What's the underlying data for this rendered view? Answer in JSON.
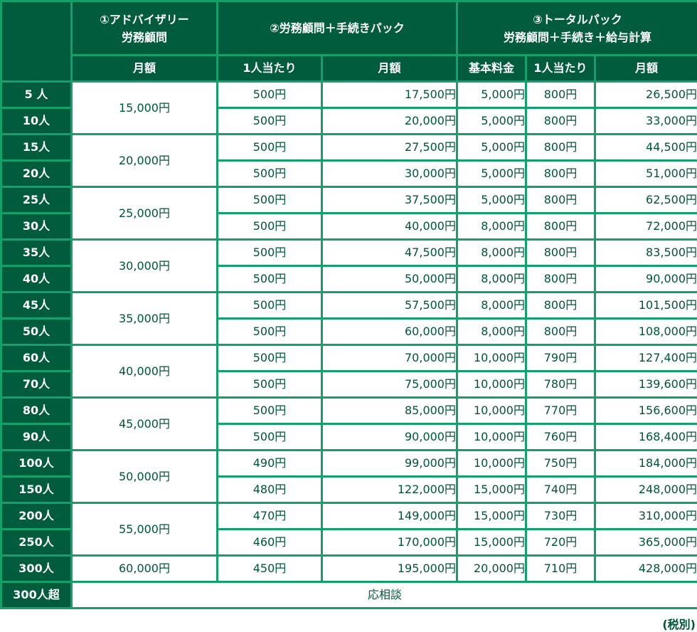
{
  "table": {
    "headers": {
      "plan1_title_line1": "①アドバイザリー",
      "plan1_title_line2": "労務顧問",
      "plan2_title": "②労務顧問＋手続きパック",
      "plan3_title_line1": "③トータルパック",
      "plan3_title_line2": "労務顧問＋手続き＋給与計算",
      "plan1_monthly": "月額",
      "plan2_per_person": "1人当たり",
      "plan2_monthly": "月額",
      "plan3_base_fee": "基本料金",
      "plan3_per_person": "1人当たり",
      "plan3_monthly": "月額"
    },
    "plan1_groups": [
      "15,000円",
      "20,000円",
      "25,000円",
      "30,000円",
      "35,000円",
      "40,000円",
      "45,000円",
      "50,000円",
      "55,000円",
      "60,000円"
    ],
    "rows": [
      {
        "employees": "5 人",
        "p2_per": "500円",
        "p2_month": "17,500円",
        "p3_base": "5,000円",
        "p3_per": "800円",
        "p3_month": "26,500円"
      },
      {
        "employees": "10人",
        "p2_per": "500円",
        "p2_month": "20,000円",
        "p3_base": "5,000円",
        "p3_per": "800円",
        "p3_month": "33,000円"
      },
      {
        "employees": "15人",
        "p2_per": "500円",
        "p2_month": "27,500円",
        "p3_base": "5,000円",
        "p3_per": "800円",
        "p3_month": "44,500円"
      },
      {
        "employees": "20人",
        "p2_per": "500円",
        "p2_month": "30,000円",
        "p3_base": "5,000円",
        "p3_per": "800円",
        "p3_month": "51,000円"
      },
      {
        "employees": "25人",
        "p2_per": "500円",
        "p2_month": "37,500円",
        "p3_base": "5,000円",
        "p3_per": "800円",
        "p3_month": "62,500円"
      },
      {
        "employees": "30人",
        "p2_per": "500円",
        "p2_month": "40,000円",
        "p3_base": "8,000円",
        "p3_per": "800円",
        "p3_month": "72,000円"
      },
      {
        "employees": "35人",
        "p2_per": "500円",
        "p2_month": "47,500円",
        "p3_base": "8,000円",
        "p3_per": "800円",
        "p3_month": "83,500円"
      },
      {
        "employees": "40人",
        "p2_per": "500円",
        "p2_month": "50,000円",
        "p3_base": "8,000円",
        "p3_per": "800円",
        "p3_month": "90,000円"
      },
      {
        "employees": "45人",
        "p2_per": "500円",
        "p2_month": "57,500円",
        "p3_base": "8,000円",
        "p3_per": "800円",
        "p3_month": "101,500円"
      },
      {
        "employees": "50人",
        "p2_per": "500円",
        "p2_month": "60,000円",
        "p3_base": "8,000円",
        "p3_per": "800円",
        "p3_month": "108,000円"
      },
      {
        "employees": "60人",
        "p2_per": "500円",
        "p2_month": "70,000円",
        "p3_base": "10,000円",
        "p3_per": "790円",
        "p3_month": "127,400円"
      },
      {
        "employees": "70人",
        "p2_per": "500円",
        "p2_month": "75,000円",
        "p3_base": "10,000円",
        "p3_per": "780円",
        "p3_month": "139,600円"
      },
      {
        "employees": "80人",
        "p2_per": "500円",
        "p2_month": "85,000円",
        "p3_base": "10,000円",
        "p3_per": "770円",
        "p3_month": "156,600円"
      },
      {
        "employees": "90人",
        "p2_per": "500円",
        "p2_month": "90,000円",
        "p3_base": "10,000円",
        "p3_per": "760円",
        "p3_month": "168,400円"
      },
      {
        "employees": "100人",
        "p2_per": "490円",
        "p2_month": "99,000円",
        "p3_base": "10,000円",
        "p3_per": "750円",
        "p3_month": "184,000円"
      },
      {
        "employees": "150人",
        "p2_per": "480円",
        "p2_month": "122,000円",
        "p3_base": "15,000円",
        "p3_per": "740円",
        "p3_month": "248,000円"
      },
      {
        "employees": "200人",
        "p2_per": "470円",
        "p2_month": "149,000円",
        "p3_base": "15,000円",
        "p3_per": "730円",
        "p3_month": "310,000円"
      },
      {
        "employees": "250人",
        "p2_per": "460円",
        "p2_month": "170,000円",
        "p3_base": "15,000円",
        "p3_per": "720円",
        "p3_month": "365,000円"
      },
      {
        "employees": "300人",
        "p2_per": "450円",
        "p2_month": "195,000円",
        "p3_base": "20,000円",
        "p3_per": "710円",
        "p3_month": "428,000円"
      }
    ],
    "over_row": {
      "employees": "300人超",
      "text": "応相談"
    }
  },
  "note": "(税別)",
  "colors": {
    "header_bg": "#005c3c",
    "border": "#13a06a",
    "text": "#00543a"
  }
}
